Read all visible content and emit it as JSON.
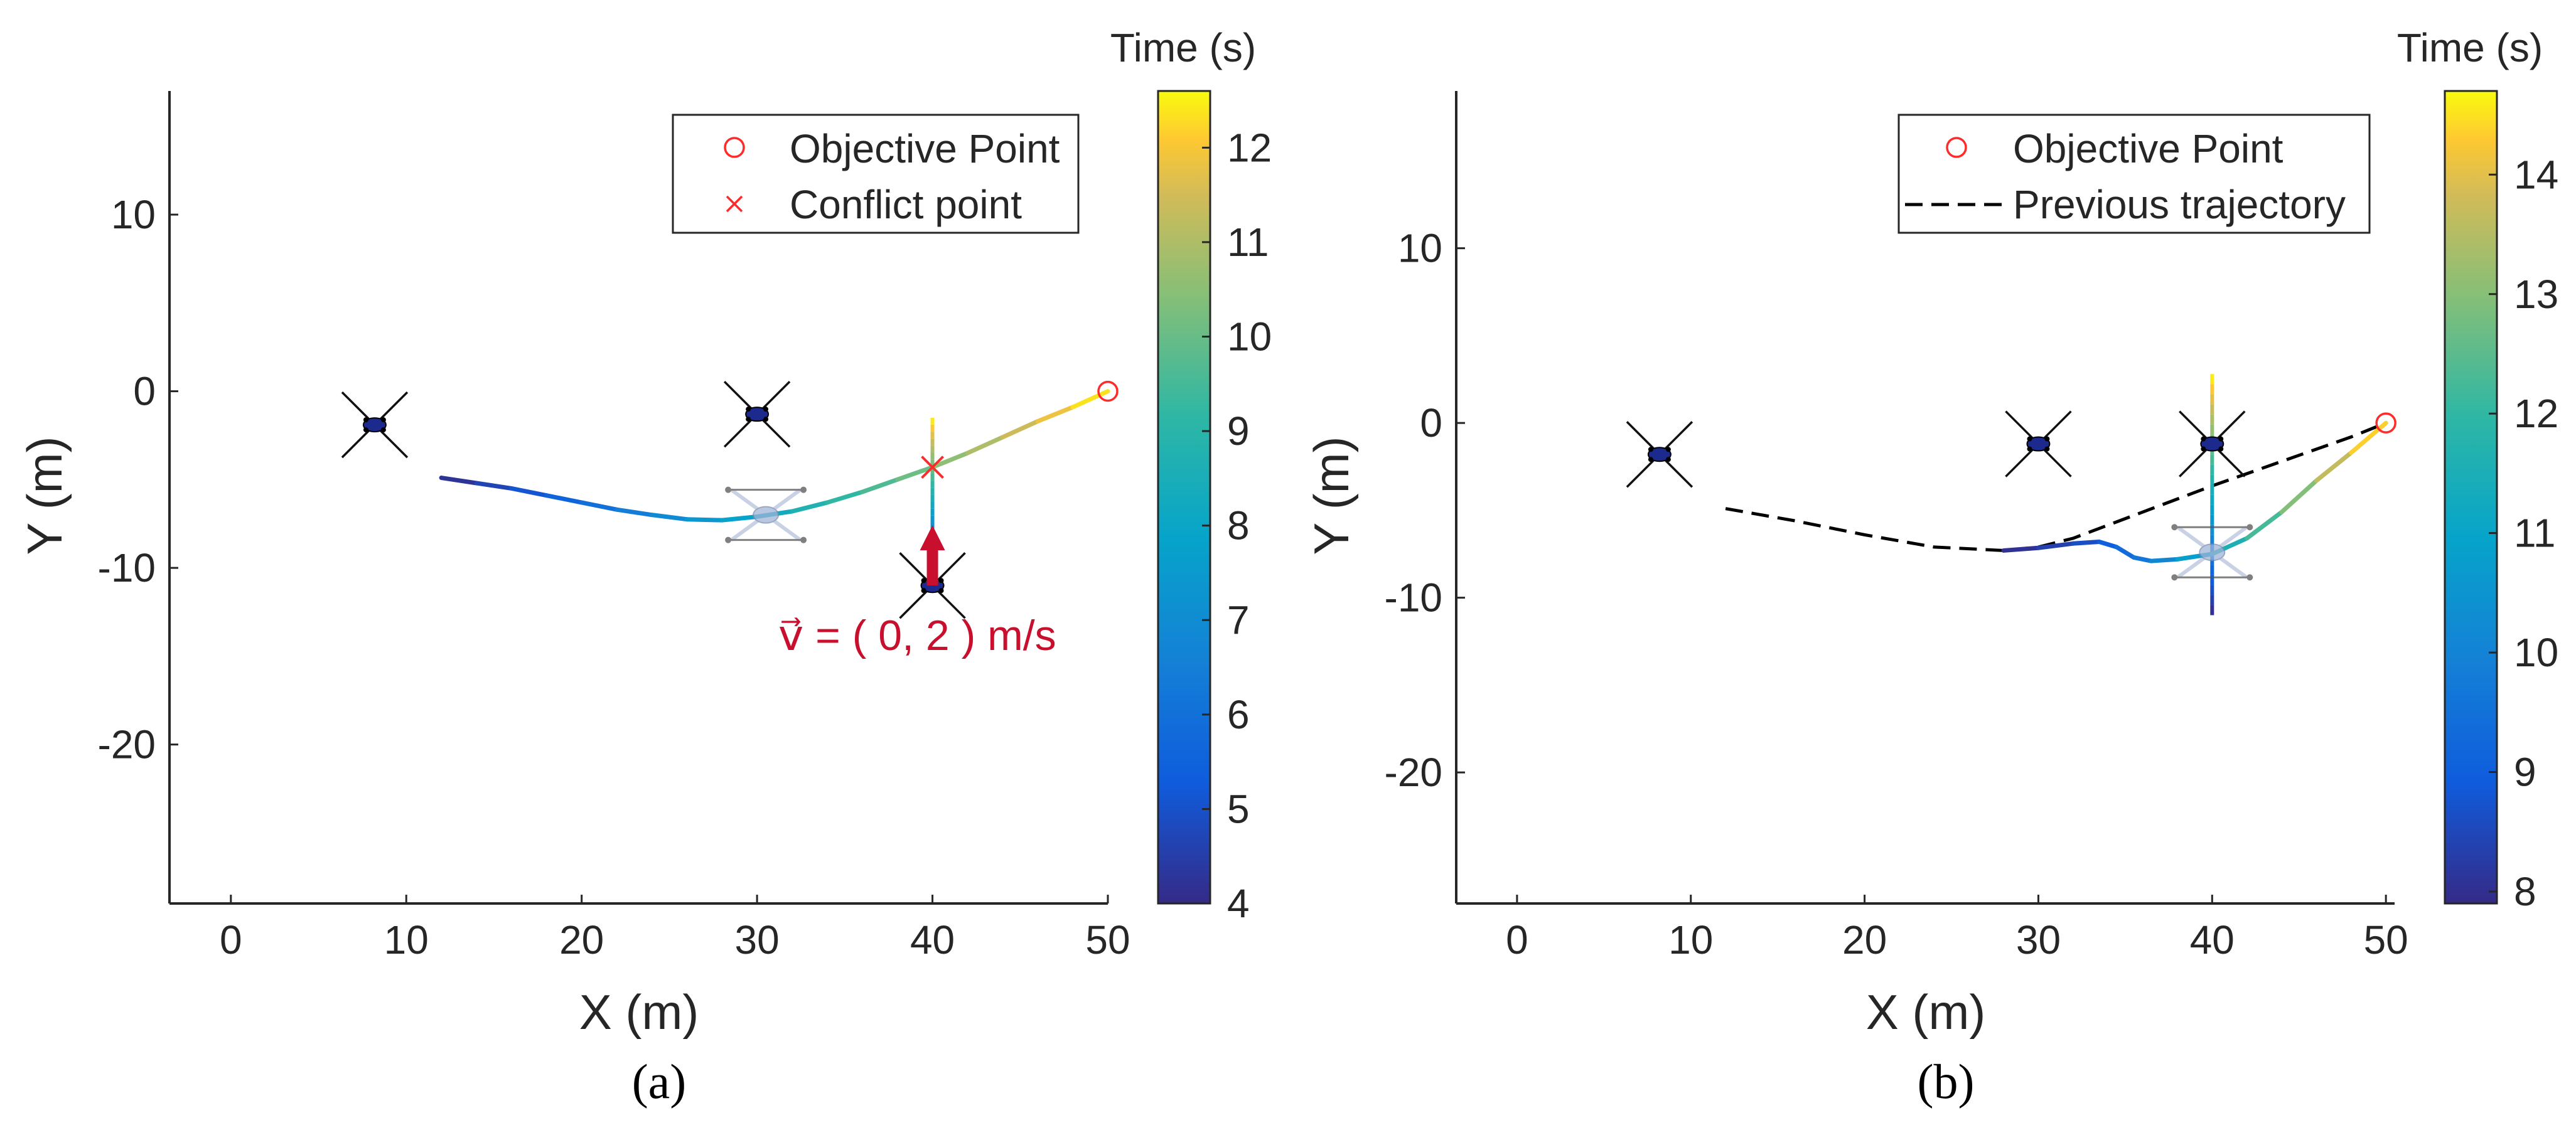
{
  "chart_data": [
    {
      "type": "line",
      "panel_label": "(a)",
      "xlabel": "X (m)",
      "ylabel": "Y (m)",
      "xlim": [
        -3.5,
        50
      ],
      "ylim": [
        -29,
        17
      ],
      "xticks": [
        0,
        10,
        20,
        30,
        40,
        50
      ],
      "yticks": [
        10,
        0,
        -10,
        -20
      ],
      "grid": false,
      "legend_placement": "top-right",
      "legend": [
        {
          "marker": "circle",
          "label": "Objective Point"
        },
        {
          "marker": "x",
          "label": "Conflict point"
        }
      ],
      "colorbar": {
        "label": "Time (s)",
        "range": [
          4,
          12.6
        ],
        "ticks": [
          4,
          5,
          6,
          7,
          8,
          9,
          10,
          11,
          12
        ],
        "colormap": "parula"
      },
      "objective_point": [
        50,
        0
      ],
      "conflict_point": [
        40,
        -4.3
      ],
      "obstacles": [
        [
          8.2,
          -1.9
        ],
        [
          30,
          -1.3
        ],
        [
          40,
          -11
        ]
      ],
      "ghost_drone": [
        30.5,
        -7
      ],
      "trajectory": {
        "x": [
          12,
          14,
          16,
          18,
          20,
          22,
          24,
          26,
          28,
          30,
          32,
          34,
          36,
          38,
          40,
          42,
          44,
          46,
          48,
          50
        ],
        "y": [
          -4.9,
          -5.2,
          -5.5,
          -5.9,
          -6.3,
          -6.7,
          -7.0,
          -7.25,
          -7.3,
          -7.1,
          -6.8,
          -6.3,
          -5.7,
          -5.0,
          -4.3,
          -3.5,
          -2.6,
          -1.7,
          -0.9,
          0
        ],
        "t": [
          4,
          4.45,
          4.9,
          5.35,
          5.8,
          6.25,
          6.7,
          7.15,
          7.6,
          8.05,
          8.5,
          8.95,
          9.4,
          9.85,
          10.3,
          10.8,
          11.2,
          11.65,
          12.1,
          12.6
        ]
      },
      "vertical_path": {
        "x": 40,
        "y": [
          -11,
          -1.5
        ],
        "t": [
          4,
          12.6
        ]
      },
      "velocity": {
        "origin": [
          40,
          -11
        ],
        "vector": [
          0,
          2
        ],
        "label": "v⃗ = ( 0, 2 ) m/s",
        "color": "#c8102e"
      }
    },
    {
      "type": "line",
      "panel_label": "(b)",
      "xlabel": "X (m)",
      "ylabel": "Y (m)",
      "xlim": [
        -3.5,
        50.5
      ],
      "ylim": [
        -27.5,
        19
      ],
      "xticks": [
        0,
        10,
        20,
        30,
        40,
        50
      ],
      "yticks": [
        10,
        0,
        -10,
        -20
      ],
      "grid": false,
      "legend_placement": "top-right",
      "legend": [
        {
          "marker": "circle",
          "label": "Objective Point"
        },
        {
          "marker": "dashed-line",
          "label": "Previous trajectory"
        }
      ],
      "colorbar": {
        "label": "Time (s)",
        "range": [
          7.9,
          14.7
        ],
        "ticks": [
          8,
          9,
          10,
          11,
          12,
          13,
          14
        ],
        "colormap": "parula"
      },
      "objective_point": [
        50,
        0
      ],
      "obstacles": [
        [
          8.2,
          -1.8
        ],
        [
          30,
          -1.2
        ],
        [
          40,
          -1.2
        ]
      ],
      "ghost_drone": [
        40,
        -7.4
      ],
      "previous_trajectory": {
        "x": [
          12,
          16,
          20,
          24,
          28,
          30,
          32,
          36,
          40,
          44,
          48,
          50
        ],
        "y": [
          -4.9,
          -5.6,
          -6.4,
          -7.1,
          -7.3,
          -7.1,
          -6.6,
          -5.1,
          -3.6,
          -2.2,
          -0.8,
          0
        ]
      },
      "trajectory": {
        "x": [
          28,
          30,
          32,
          33.5,
          34.5,
          35.5,
          36.5,
          38,
          40,
          42,
          44,
          46,
          48,
          50
        ],
        "y": [
          -7.3,
          -7.15,
          -6.9,
          -6.8,
          -7.1,
          -7.7,
          -7.9,
          -7.8,
          -7.5,
          -6.6,
          -5.1,
          -3.3,
          -1.7,
          0
        ],
        "t": [
          7.9,
          8.2,
          8.5,
          8.8,
          9.15,
          9.5,
          9.85,
          10.4,
          11.2,
          11.9,
          12.6,
          13.3,
          14.0,
          14.7
        ]
      },
      "vertical_path": {
        "x": 40,
        "y": [
          -11,
          2.8
        ],
        "t": [
          7.9,
          14.7
        ]
      }
    }
  ]
}
